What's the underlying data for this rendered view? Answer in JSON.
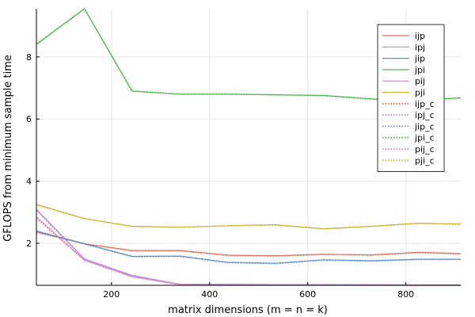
{
  "chart_data": {
    "type": "line",
    "title": "",
    "xlabel": "matrix dimensions (m = n = k)",
    "ylabel": "GFLOPS from minimum sample time",
    "xlim": [
      47,
      912
    ],
    "ylim": [
      0.65,
      9.55
    ],
    "xticks": [
      200,
      400,
      600,
      800
    ],
    "yticks": [
      2,
      4,
      6,
      8
    ],
    "grid": true,
    "legend_position": "top-right",
    "series": [
      {
        "name": "ijp",
        "color": "#e26f5a",
        "style": "solid",
        "x": [
          47,
          145,
          242,
          340,
          437,
          534,
          632,
          729,
          826,
          912
        ],
        "y": [
          2.37,
          1.98,
          1.77,
          1.77,
          1.62,
          1.6,
          1.65,
          1.63,
          1.71,
          1.67
        ]
      },
      {
        "name": "ipj",
        "color": "#b48ce0",
        "style": "solid",
        "x": [
          47,
          145,
          242,
          340,
          437,
          534,
          632,
          729,
          826,
          912
        ],
        "y": [
          3.1,
          1.5,
          0.97,
          0.68,
          0.68,
          0.67,
          0.67,
          0.67,
          0.66,
          0.66
        ]
      },
      {
        "name": "jip",
        "color": "#5c8fd1",
        "style": "solid",
        "x": [
          47,
          145,
          242,
          340,
          437,
          534,
          632,
          729,
          826,
          912
        ],
        "y": [
          2.4,
          1.99,
          1.58,
          1.59,
          1.39,
          1.36,
          1.47,
          1.44,
          1.49,
          1.49
        ]
      },
      {
        "name": "jpi",
        "color": "#4db84d",
        "style": "solid",
        "x": [
          47,
          145,
          242,
          340,
          437,
          534,
          632,
          729,
          826,
          912
        ],
        "y": [
          8.4,
          9.55,
          6.9,
          6.8,
          6.8,
          6.78,
          6.76,
          6.65,
          6.6,
          6.68
        ]
      },
      {
        "name": "pij",
        "color": "#e683b8",
        "style": "solid",
        "x": [
          47,
          145,
          242,
          340,
          437,
          534,
          632,
          729,
          826,
          912
        ],
        "y": [
          2.85,
          1.46,
          0.93,
          0.67,
          0.67,
          0.66,
          0.66,
          0.66,
          0.65,
          0.65
        ]
      },
      {
        "name": "pji",
        "color": "#c7b83b",
        "style": "solid",
        "x": [
          47,
          145,
          242,
          340,
          437,
          534,
          632,
          729,
          826,
          912
        ],
        "y": [
          3.25,
          2.8,
          2.55,
          2.52,
          2.57,
          2.6,
          2.47,
          2.55,
          2.65,
          2.62
        ]
      },
      {
        "name": "ijp_c",
        "color": "#e26f5a",
        "style": "dotted",
        "x": [
          47,
          145,
          242,
          340,
          437,
          534,
          632,
          729,
          826,
          912
        ],
        "y": [
          2.35,
          1.99,
          1.76,
          1.76,
          1.61,
          1.59,
          1.64,
          1.62,
          1.7,
          1.66
        ]
      },
      {
        "name": "ipj_c",
        "color": "#b48ce0",
        "style": "dotted",
        "x": [
          47,
          145,
          242,
          340,
          437,
          534,
          632,
          729,
          826,
          912
        ],
        "y": [
          3.05,
          1.48,
          0.96,
          0.68,
          0.68,
          0.67,
          0.67,
          0.66,
          0.66,
          0.66
        ]
      },
      {
        "name": "jip_c",
        "color": "#5c8fd1",
        "style": "dotted",
        "x": [
          47,
          145,
          242,
          340,
          437,
          534,
          632,
          729,
          826,
          912
        ],
        "y": [
          2.38,
          1.98,
          1.57,
          1.58,
          1.38,
          1.35,
          1.46,
          1.43,
          1.48,
          1.48
        ]
      },
      {
        "name": "jpi_c",
        "color": "#4db84d",
        "style": "dotted",
        "x": [
          47,
          145,
          242,
          340,
          437,
          534,
          632,
          729,
          826,
          912
        ],
        "y": [
          8.42,
          9.55,
          6.9,
          6.8,
          6.8,
          6.78,
          6.75,
          6.64,
          6.6,
          6.68
        ]
      },
      {
        "name": "pij_c",
        "color": "#e683b8",
        "style": "dotted",
        "x": [
          47,
          145,
          242,
          340,
          437,
          534,
          632,
          729,
          826,
          912
        ],
        "y": [
          2.8,
          1.45,
          0.92,
          0.67,
          0.66,
          0.66,
          0.66,
          0.65,
          0.65,
          0.65
        ]
      },
      {
        "name": "pji_c",
        "color": "#c7b83b",
        "style": "dotted",
        "x": [
          47,
          145,
          242,
          340,
          437,
          534,
          632,
          729,
          826,
          912
        ],
        "y": [
          3.23,
          2.79,
          2.54,
          2.52,
          2.56,
          2.59,
          2.46,
          2.54,
          2.64,
          2.61
        ]
      }
    ]
  }
}
